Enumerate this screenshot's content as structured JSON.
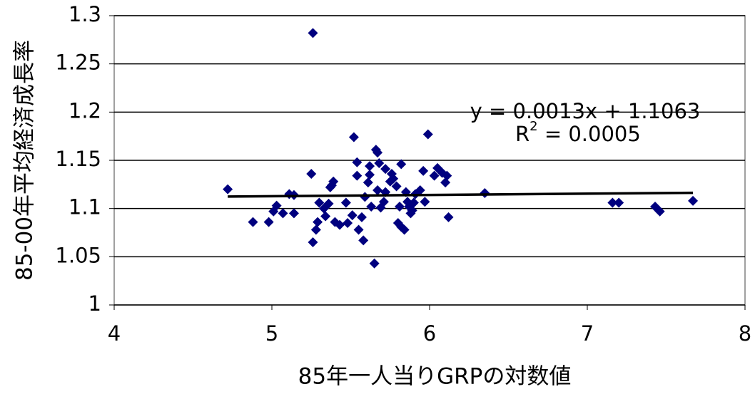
{
  "chart_data": {
    "type": "scatter",
    "xlabel": "85年一人当りGRPの対数値",
    "ylabel": "85-00年平均経済成長率",
    "equation": "y = 0.0013x + 1.1063",
    "r2": {
      "base": "R",
      "sup": "2",
      "rest": " = 0.0005"
    },
    "trendline": {
      "slope": 0.0013,
      "intercept": 1.1063,
      "color": "#000000"
    },
    "xlim": [
      4,
      8
    ],
    "xticks": [
      4,
      5,
      6,
      7,
      8
    ],
    "ylim": [
      1,
      1.3
    ],
    "yticks": [
      1,
      1.05,
      1.1,
      1.15,
      1.2,
      1.25,
      1.3
    ],
    "grid": true,
    "color": "#00007f",
    "x": [
      4.72,
      4.88,
      4.98,
      5.01,
      5.03,
      5.07,
      5.11,
      5.14,
      5.14,
      5.25,
      5.26,
      5.26,
      5.28,
      5.29,
      5.3,
      5.33,
      5.34,
      5.36,
      5.37,
      5.38,
      5.39,
      5.4,
      5.43,
      5.47,
      5.48,
      5.51,
      5.52,
      5.54,
      5.54,
      5.55,
      5.57,
      5.58,
      5.59,
      5.61,
      5.62,
      5.62,
      5.63,
      5.65,
      5.66,
      5.67,
      5.67,
      5.68,
      5.69,
      5.71,
      5.72,
      5.72,
      5.75,
      5.76,
      5.77,
      5.79,
      5.8,
      5.81,
      5.82,
      5.82,
      5.84,
      5.85,
      5.86,
      5.87,
      5.88,
      5.89,
      5.9,
      5.91,
      5.94,
      5.96,
      5.97,
      5.99,
      6.03,
      6.05,
      6.08,
      6.1,
      6.12,
      6.11,
      6.35,
      7.16,
      7.2,
      7.43,
      7.46,
      7.67
    ],
    "values": [
      1.12,
      1.086,
      1.086,
      1.097,
      1.103,
      1.095,
      1.115,
      1.095,
      1.114,
      1.136,
      1.282,
      1.065,
      1.078,
      1.086,
      1.106,
      1.1,
      1.092,
      1.105,
      1.122,
      1.124,
      1.128,
      1.086,
      1.083,
      1.106,
      1.085,
      1.093,
      1.174,
      1.134,
      1.148,
      1.078,
      1.091,
      1.067,
      1.112,
      1.127,
      1.135,
      1.144,
      1.102,
      1.043,
      1.161,
      1.158,
      1.119,
      1.147,
      1.101,
      1.107,
      1.117,
      1.141,
      1.128,
      1.136,
      1.131,
      1.123,
      1.085,
      1.102,
      1.146,
      1.081,
      1.078,
      1.117,
      1.107,
      1.102,
      1.095,
      1.098,
      1.106,
      1.115,
      1.119,
      1.139,
      1.107,
      1.177,
      1.134,
      1.142,
      1.137,
      1.127,
      1.091,
      1.134,
      1.116,
      1.106,
      1.106,
      1.102,
      1.097,
      1.108
    ]
  }
}
